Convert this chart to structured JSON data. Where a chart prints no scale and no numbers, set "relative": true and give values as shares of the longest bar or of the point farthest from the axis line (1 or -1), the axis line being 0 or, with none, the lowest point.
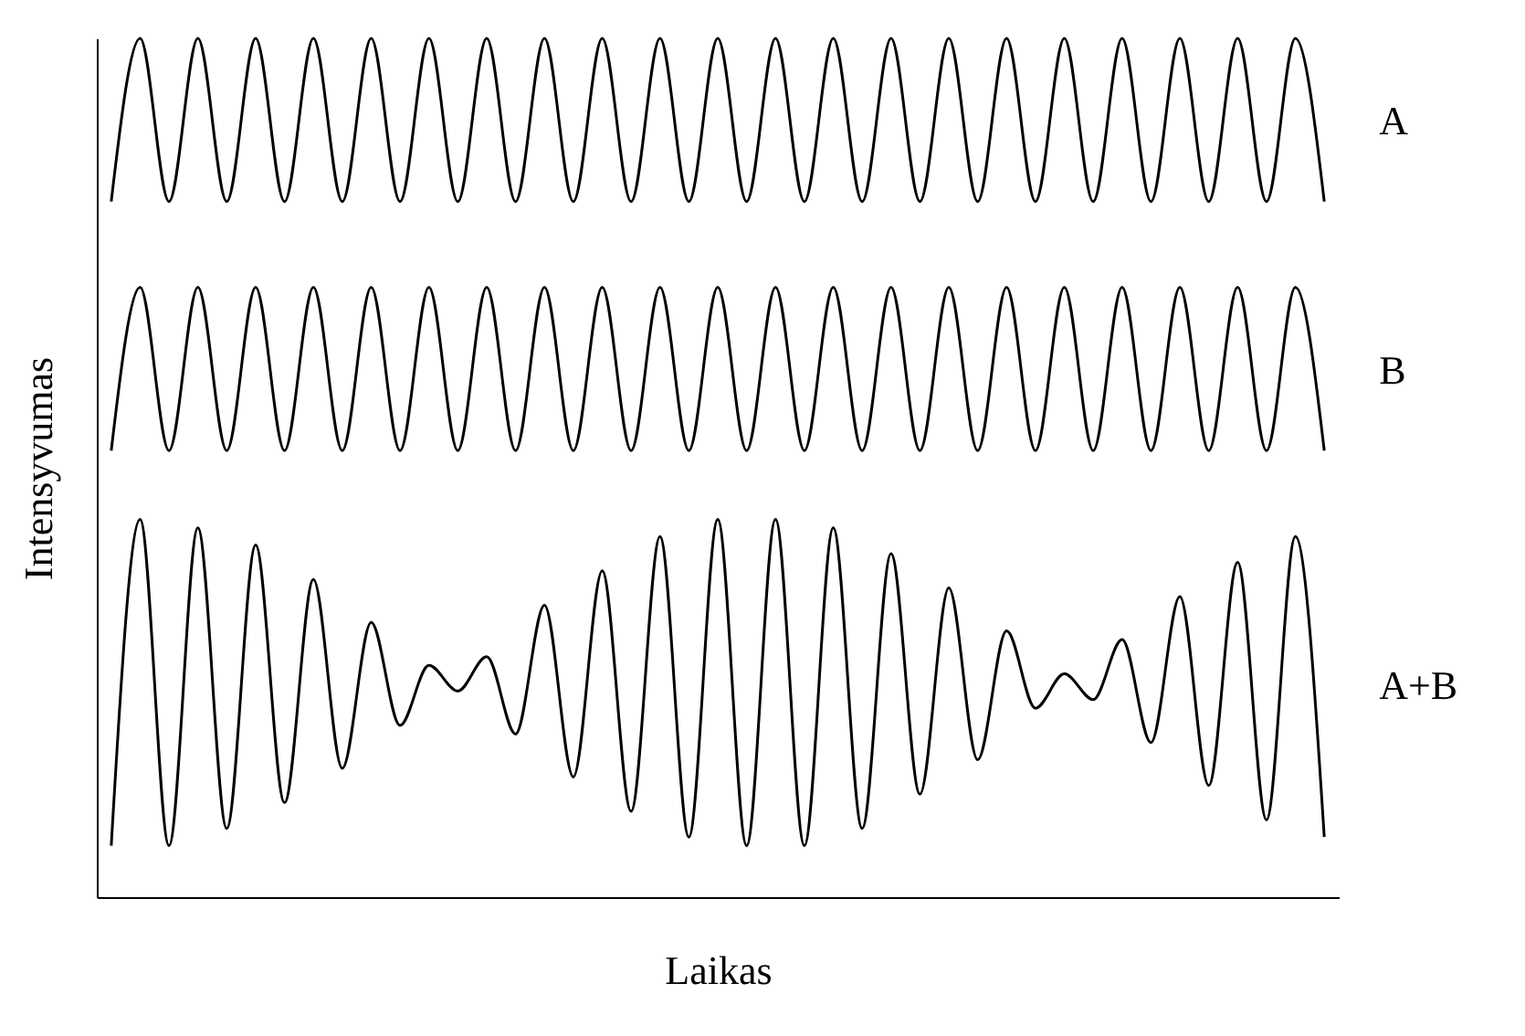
{
  "chart_data": {
    "type": "line",
    "relative": true,
    "xlabel": "Laikas",
    "ylabel": "Intensyvumas",
    "categories": [
      null,
      null,
      null,
      null,
      null,
      null,
      null,
      null,
      null,
      null,
      null,
      null,
      null,
      null,
      null,
      null,
      null,
      null,
      null,
      null,
      null,
      null,
      null,
      null,
      null,
      null,
      null,
      null,
      null,
      null,
      null,
      null,
      null,
      null,
      null,
      null,
      null,
      null,
      null,
      null,
      null,
      null,
      null
    ],
    "series": [
      {
        "name": "A",
        "color": "#000000",
        "values": [
          0.81,
          1.0,
          0.81,
          1.0,
          0.81,
          1.0,
          0.81,
          1.0,
          0.81,
          1.0,
          0.81,
          1.0,
          0.81,
          1.0,
          0.81,
          1.0,
          0.81,
          1.0,
          0.81,
          1.0,
          0.81,
          1.0,
          0.81,
          1.0,
          0.81,
          1.0,
          0.81,
          1.0,
          0.81,
          1.0,
          0.81,
          1.0,
          0.81,
          1.0,
          0.81,
          1.0,
          0.81,
          1.0,
          0.81,
          1.0,
          0.81,
          1.0,
          0.81
        ]
      },
      {
        "name": "B",
        "color": "#000000",
        "values": [
          0.52,
          0.71,
          0.52,
          0.71,
          0.52,
          0.71,
          0.52,
          0.71,
          0.52,
          0.71,
          0.52,
          0.71,
          0.52,
          0.71,
          0.52,
          0.71,
          0.52,
          0.71,
          0.52,
          0.71,
          0.52,
          0.71,
          0.52,
          0.71,
          0.52,
          0.71,
          0.52,
          0.71,
          0.52,
          0.71,
          0.52,
          0.71,
          0.52,
          0.71,
          0.52,
          0.71,
          0.52,
          0.71,
          0.52,
          0.71,
          0.52,
          0.71,
          0.52
        ]
      },
      {
        "name": "A+B",
        "color": "#000000",
        "values": [
          0.06,
          0.44,
          0.06,
          0.43,
          0.08,
          0.41,
          0.11,
          0.37,
          0.15,
          0.32,
          0.2,
          0.27,
          0.24,
          0.28,
          0.19,
          0.34,
          0.14,
          0.38,
          0.1,
          0.42,
          0.07,
          0.44,
          0.06,
          0.44,
          0.06,
          0.43,
          0.08,
          0.4,
          0.12,
          0.36,
          0.16,
          0.31,
          0.22,
          0.26,
          0.23,
          0.3,
          0.18,
          0.35,
          0.13,
          0.39,
          0.09,
          0.42,
          0.07
        ]
      }
    ]
  }
}
